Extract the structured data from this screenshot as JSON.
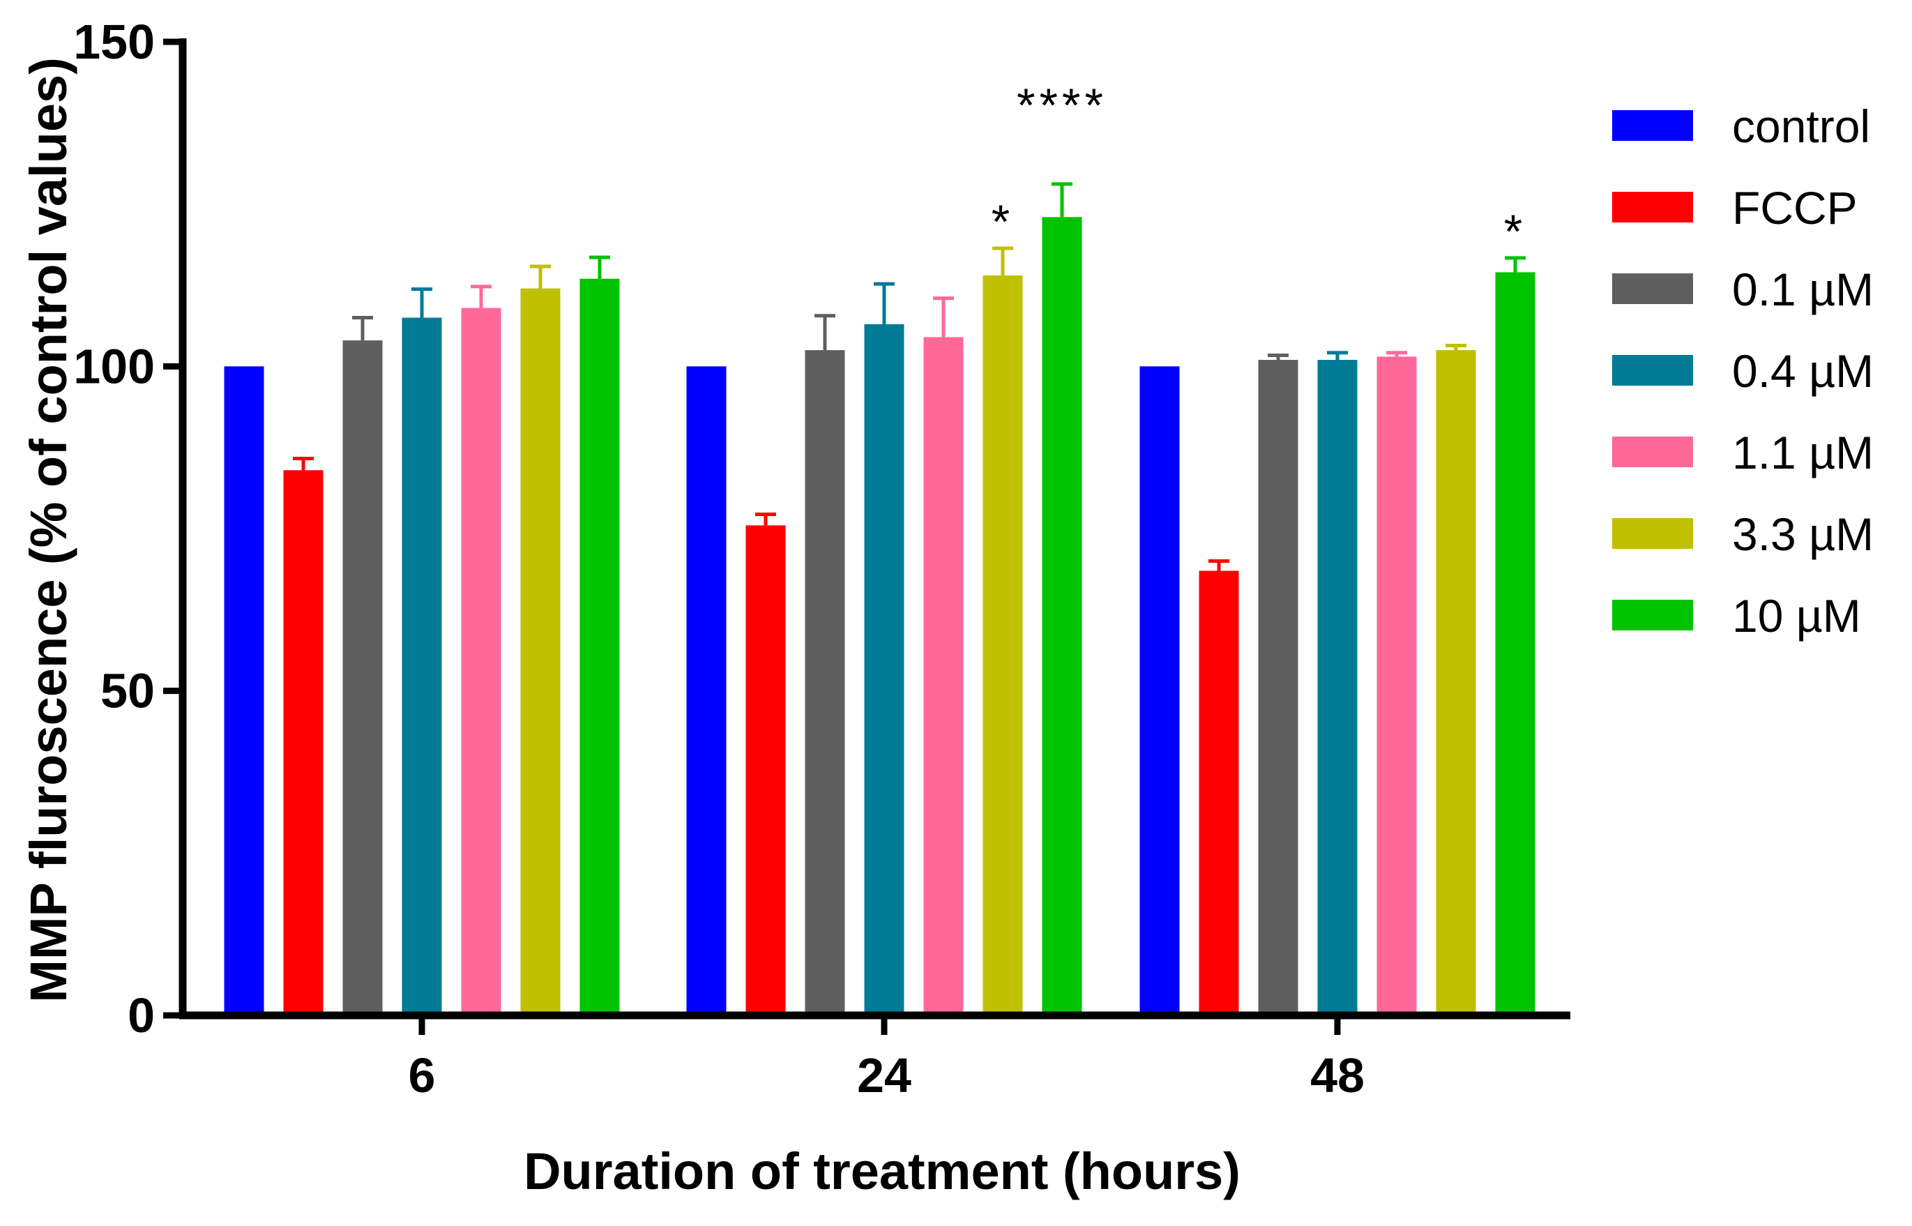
{
  "chart_data": {
    "type": "bar",
    "title": "",
    "xlabel": "Duration of treatment (hours)",
    "ylabel": "MMP fluroscence (% of control values)",
    "ylim": [
      0,
      150
    ],
    "yticks": [
      0,
      50,
      100,
      150
    ],
    "grid": false,
    "legend_position": "right",
    "categories": [
      "6",
      "24",
      "48"
    ],
    "series": [
      {
        "name": "control",
        "color": "#0000ff",
        "values": [
          100,
          100,
          100
        ],
        "errors": [
          0,
          0,
          0
        ]
      },
      {
        "name": "FCCP",
        "color": "#ff0000",
        "values": [
          84,
          75.5,
          68.5
        ],
        "errors": [
          1.8,
          1.7,
          1.5
        ]
      },
      {
        "name": "0.1 µM",
        "color": "#5f5f5f",
        "values": [
          104,
          102.5,
          101
        ],
        "errors": [
          3.5,
          5.3,
          0.7
        ]
      },
      {
        "name": "0.4 µM",
        "color": "#007b96",
        "values": [
          107.5,
          106.5,
          101
        ],
        "errors": [
          4.4,
          6.2,
          1.1
        ]
      },
      {
        "name": "1.1 µM",
        "color": "#ff6999",
        "values": [
          109,
          104.5,
          101.5
        ],
        "errors": [
          3.3,
          6,
          0.6
        ]
      },
      {
        "name": "3.3 µM",
        "color": "#c0bf00",
        "values": [
          112,
          114,
          102.5
        ],
        "errors": [
          3.4,
          4.2,
          0.7
        ]
      },
      {
        "name": "10 µM",
        "color": "#00c300",
        "values": [
          113.5,
          123,
          114.5
        ],
        "errors": [
          3.3,
          5.1,
          2.2
        ]
      }
    ],
    "annotations": [
      {
        "text": "*",
        "category": "24",
        "series": "3.3 µM"
      },
      {
        "text": "****",
        "category": "24",
        "series": "10 µM"
      },
      {
        "text": "*",
        "category": "48",
        "series": "10 µM"
      }
    ]
  }
}
